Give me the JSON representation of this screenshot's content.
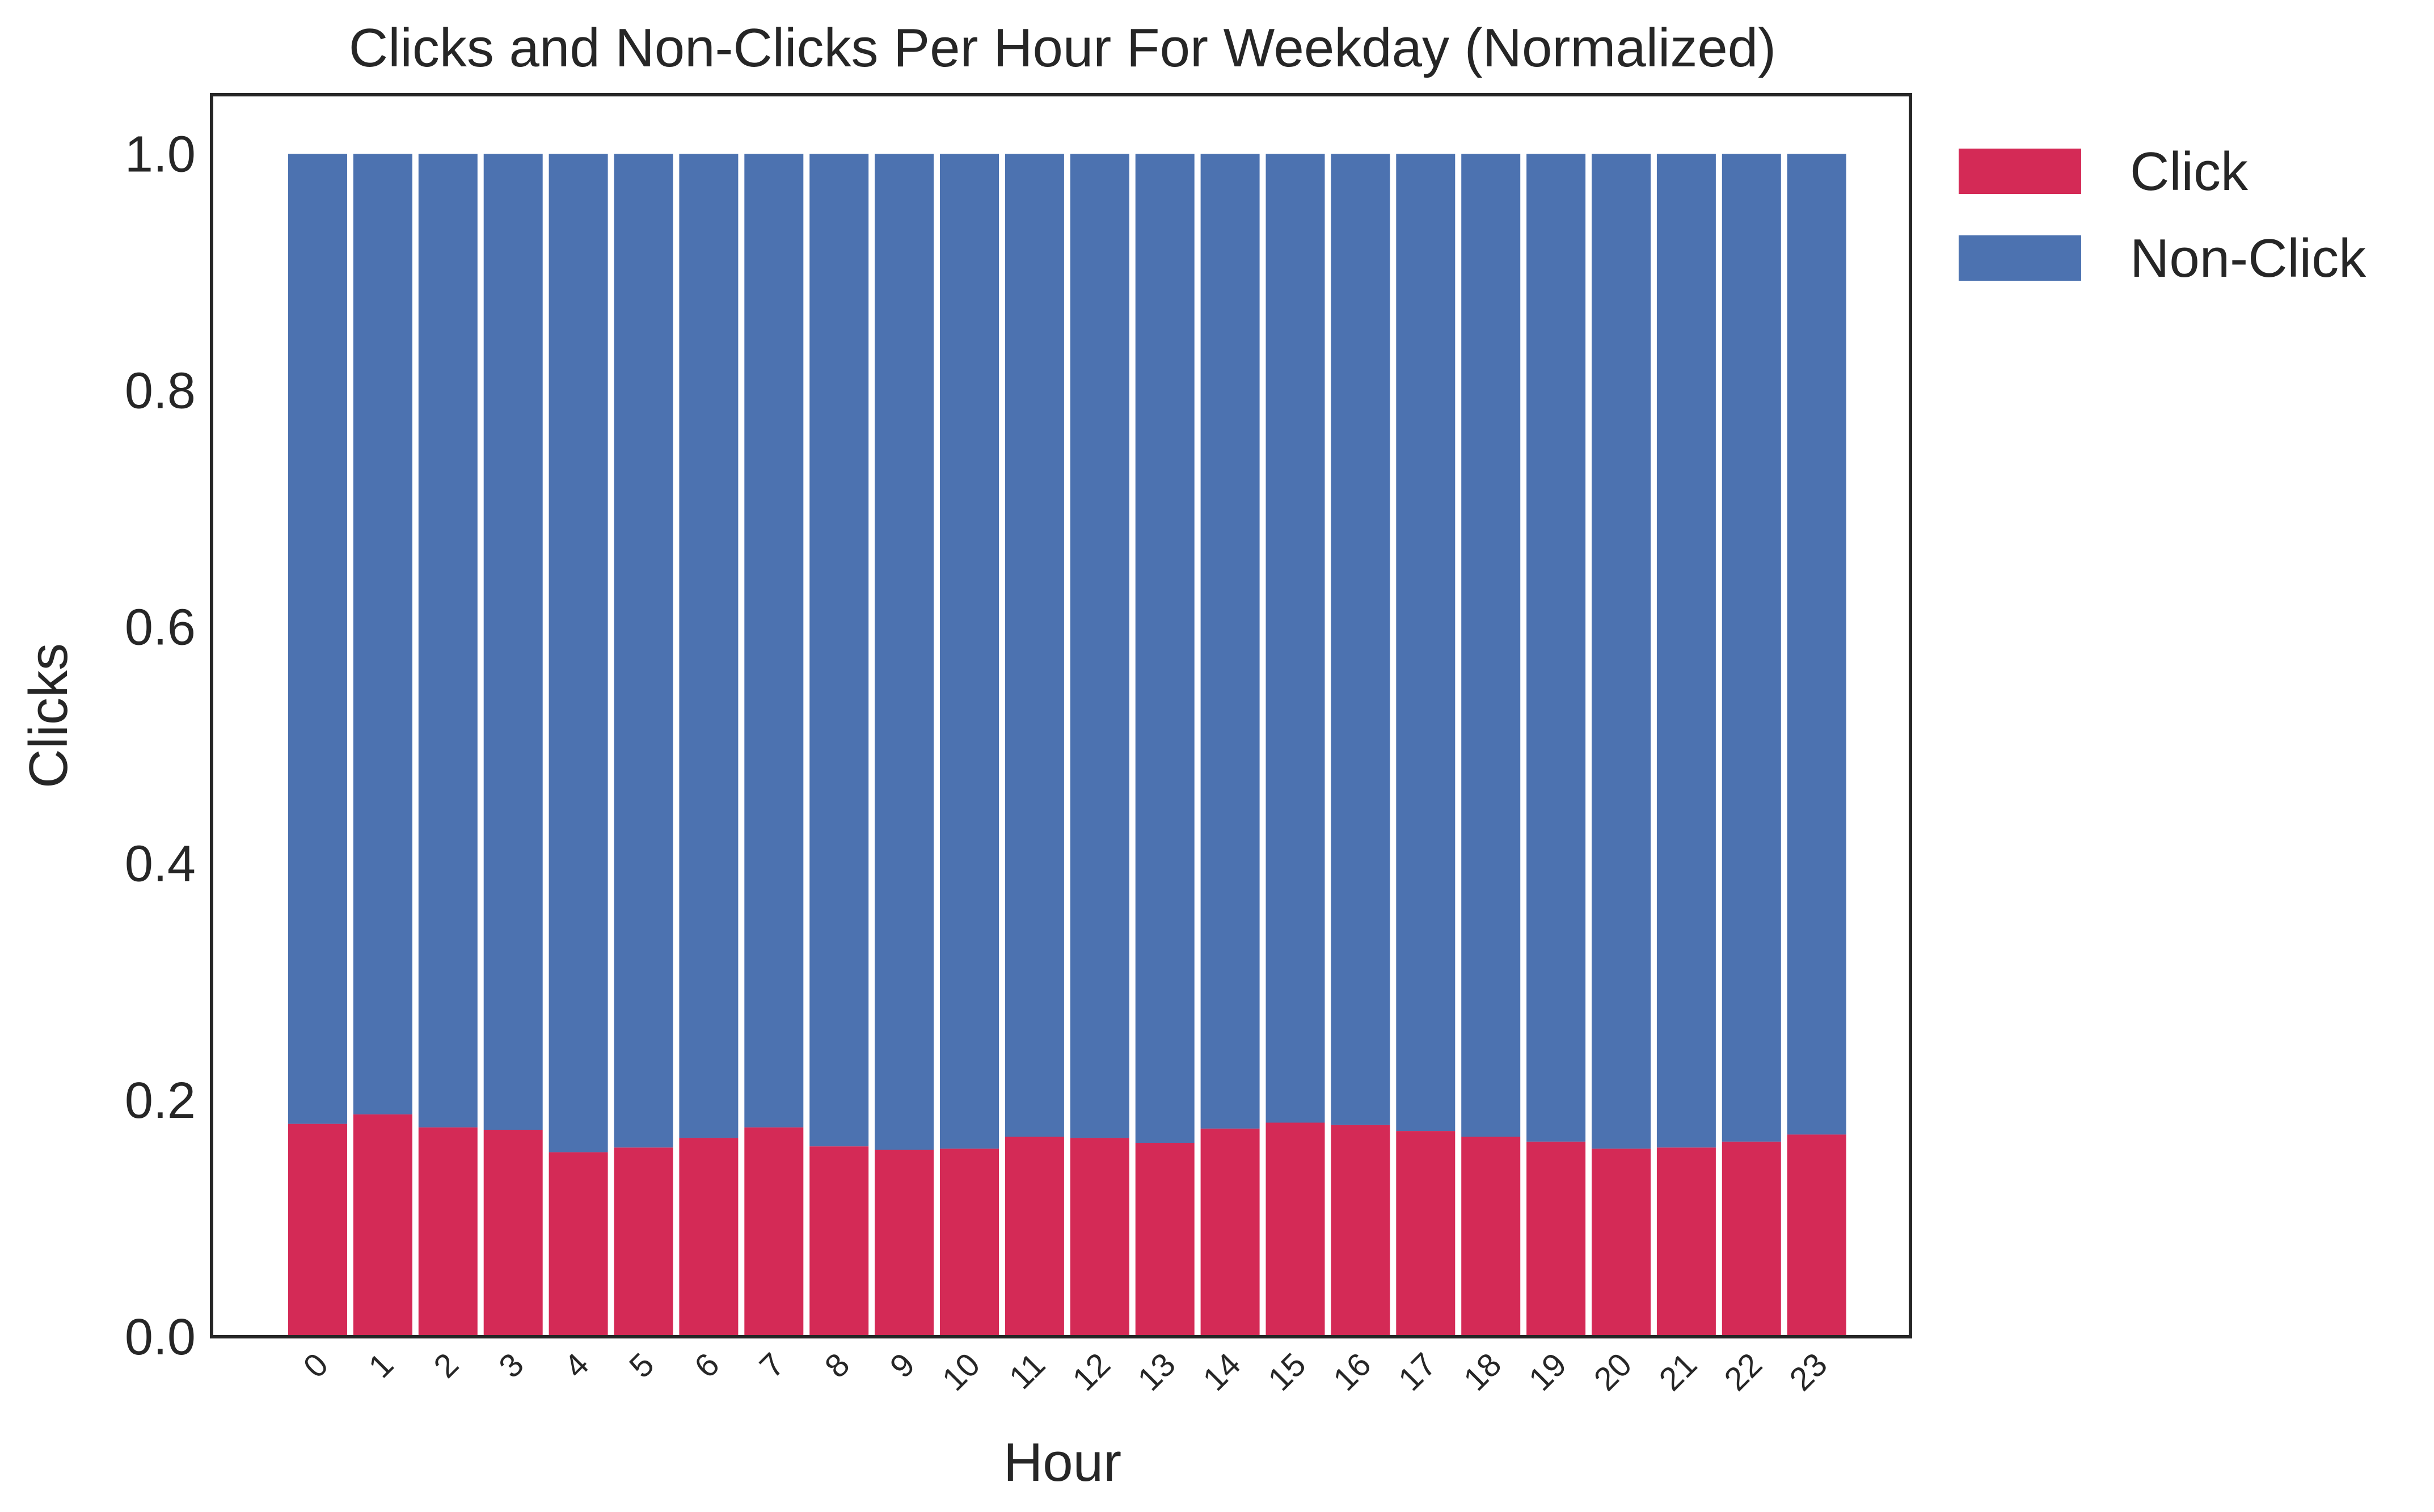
{
  "chart_data": {
    "type": "bar",
    "stacked": true,
    "title": "Clicks and Non-Clicks Per Hour For Weekday (Normalized)",
    "xlabel": "Hour",
    "ylabel": "Clicks",
    "ylim": [
      0,
      1.05
    ],
    "yticks": [
      "0.0",
      "0.2",
      "0.4",
      "0.6",
      "0.8",
      "1.0"
    ],
    "ytick_values": [
      0,
      0.2,
      0.4,
      0.6,
      0.8,
      1.0
    ],
    "grid": false,
    "legend_position": "outside-right",
    "categories": [
      "0",
      "1",
      "2",
      "3",
      "4",
      "5",
      "6",
      "7",
      "8",
      "9",
      "10",
      "11",
      "12",
      "13",
      "14",
      "15",
      "16",
      "17",
      "18",
      "19",
      "20",
      "21",
      "22",
      "23"
    ],
    "series": [
      {
        "name": "Click",
        "color": "#d42a56",
        "values": [
          0.18,
          0.188,
          0.177,
          0.175,
          0.156,
          0.16,
          0.168,
          0.177,
          0.161,
          0.158,
          0.159,
          0.169,
          0.168,
          0.164,
          0.176,
          0.181,
          0.179,
          0.174,
          0.169,
          0.165,
          0.159,
          0.16,
          0.165,
          0.171
        ]
      },
      {
        "name": "Non-Click",
        "color": "#4c72b0",
        "values": [
          0.82,
          0.812,
          0.823,
          0.825,
          0.844,
          0.84,
          0.832,
          0.823,
          0.839,
          0.842,
          0.841,
          0.831,
          0.832,
          0.836,
          0.824,
          0.819,
          0.821,
          0.826,
          0.831,
          0.835,
          0.841,
          0.84,
          0.835,
          0.829
        ]
      }
    ]
  }
}
